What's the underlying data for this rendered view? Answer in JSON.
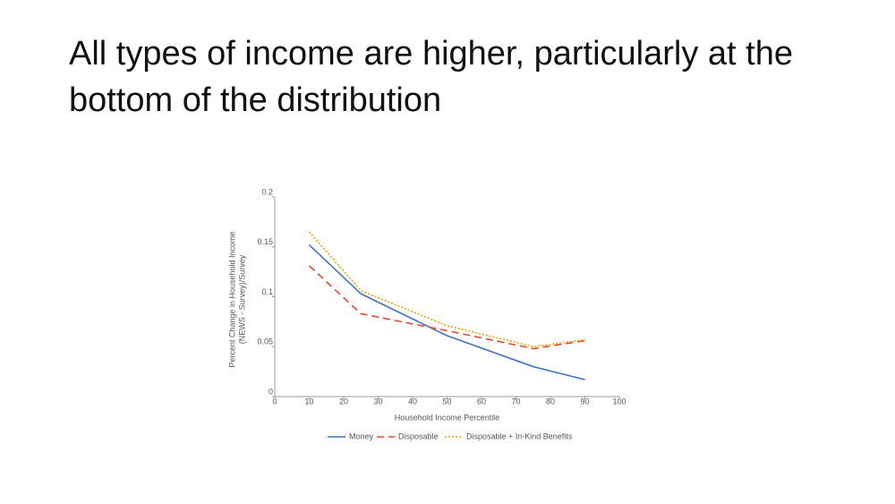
{
  "title": "All types of income are higher, particularly at the bottom of the distribution",
  "chart_data": {
    "type": "line",
    "x_label": "Household Income Percentile",
    "y_label": [
      "Percent Change in Household Income",
      "(NEWS - Survey)/Survey"
    ],
    "x": [
      10,
      25,
      50,
      75,
      90
    ],
    "series": [
      {
        "name": "Money",
        "color": "#4472c4",
        "dash": "solid",
        "values": [
          0.152,
          0.103,
          0.061,
          0.03,
          0.017
        ]
      },
      {
        "name": "Disposable",
        "color": "#e5472d",
        "dash": "dashed",
        "values": [
          0.131,
          0.083,
          0.066,
          0.048,
          0.056
        ]
      },
      {
        "name": "Disposable + In-Kind Benefits",
        "color": "#f0a500",
        "dash": "dotted",
        "values": [
          0.165,
          0.106,
          0.071,
          0.05,
          0.057
        ]
      }
    ],
    "xlim": [
      0,
      100
    ],
    "xticks": [
      0,
      10,
      20,
      30,
      40,
      50,
      60,
      70,
      80,
      90,
      100
    ],
    "ylim": [
      0,
      0.2
    ],
    "yticks": [
      0,
      0.05,
      0.1,
      0.15,
      0.2
    ],
    "grid": false,
    "legend": "bottom"
  }
}
